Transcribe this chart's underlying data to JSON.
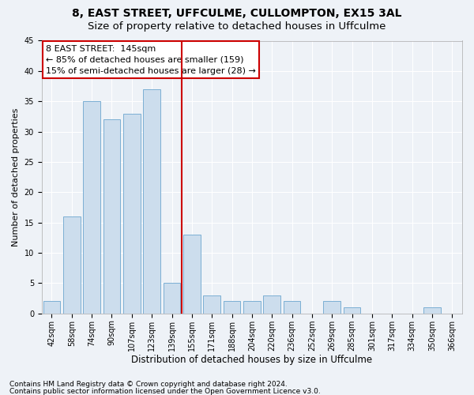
{
  "title1": "8, EAST STREET, UFFCULME, CULLOMPTON, EX15 3AL",
  "title2": "Size of property relative to detached houses in Uffculme",
  "xlabel": "Distribution of detached houses by size in Uffculme",
  "ylabel": "Number of detached properties",
  "bar_labels": [
    "42sqm",
    "58sqm",
    "74sqm",
    "90sqm",
    "107sqm",
    "123sqm",
    "139sqm",
    "155sqm",
    "171sqm",
    "188sqm",
    "204sqm",
    "220sqm",
    "236sqm",
    "252sqm",
    "269sqm",
    "285sqm",
    "301sqm",
    "317sqm",
    "334sqm",
    "350sqm",
    "366sqm"
  ],
  "bar_values": [
    2,
    16,
    35,
    32,
    33,
    37,
    5,
    13,
    3,
    2,
    2,
    3,
    2,
    0,
    2,
    1,
    0,
    0,
    0,
    1,
    0
  ],
  "bar_color": "#ccdded",
  "bar_edge_color": "#7bafd4",
  "vline_x_index": 6.5,
  "vline_color": "#cc0000",
  "annotation_line1": "8 EAST STREET:  145sqm",
  "annotation_line2": "← 85% of detached houses are smaller (159)",
  "annotation_line3": "15% of semi-detached houses are larger (28) →",
  "annotation_box_color": "#ffffff",
  "annotation_box_edge_color": "#cc0000",
  "ylim": [
    0,
    45
  ],
  "yticks": [
    0,
    5,
    10,
    15,
    20,
    25,
    30,
    35,
    40,
    45
  ],
  "footnote1": "Contains HM Land Registry data © Crown copyright and database right 2024.",
  "footnote2": "Contains public sector information licensed under the Open Government Licence v3.0.",
  "background_color": "#eef2f7",
  "grid_color": "#ffffff",
  "title1_fontsize": 10,
  "title2_fontsize": 9.5,
  "xlabel_fontsize": 8.5,
  "ylabel_fontsize": 8,
  "tick_fontsize": 7,
  "annotation_fontsize": 8,
  "footnote_fontsize": 6.5
}
